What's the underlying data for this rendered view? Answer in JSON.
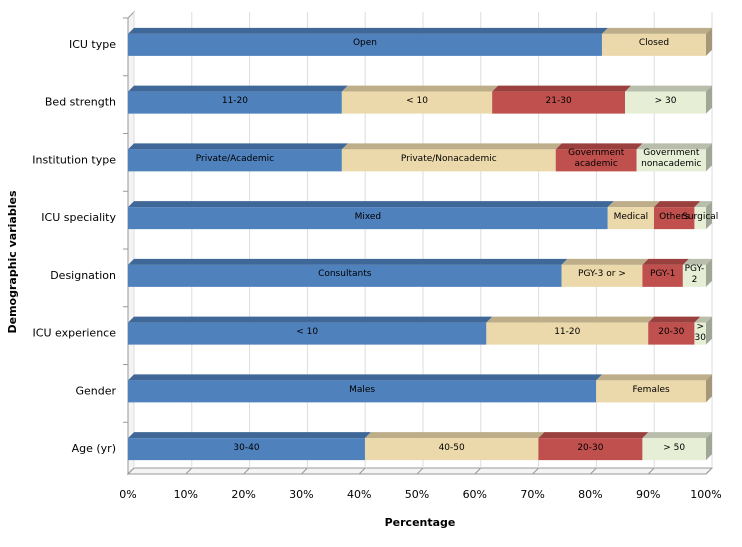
{
  "chart_data": {
    "type": "stacked-bar-horizontal",
    "x_label": "Percentage",
    "y_label": "Demographic variables",
    "xlim": [
      0,
      100
    ],
    "xticks": [
      {
        "value": 0,
        "label": "0%"
      },
      {
        "value": 10,
        "label": "10%"
      },
      {
        "value": 20,
        "label": "20%"
      },
      {
        "value": 30,
        "label": "30%"
      },
      {
        "value": 40,
        "label": "40%"
      },
      {
        "value": 50,
        "label": "50%"
      },
      {
        "value": 60,
        "label": "60%"
      },
      {
        "value": 70,
        "label": "70%"
      },
      {
        "value": 80,
        "label": "80%"
      },
      {
        "value": 90,
        "label": "90%"
      },
      {
        "value": 100,
        "label": "100%"
      }
    ],
    "grid": true,
    "colors": [
      "#4f81bd",
      "#ecd9ab",
      "#c0504d",
      "#e6eed6"
    ],
    "bars": [
      {
        "category": "ICU type",
        "segments": [
          {
            "label": "Open",
            "value": 82
          },
          {
            "label": "Closed",
            "value": 18
          }
        ]
      },
      {
        "category": "Bed strength",
        "segments": [
          {
            "label": "11-20",
            "value": 37
          },
          {
            "label": "< 10",
            "value": 26
          },
          {
            "label": "21-30",
            "value": 23
          },
          {
            "label": "> 30",
            "value": 14
          }
        ]
      },
      {
        "category": "Institution type",
        "segments": [
          {
            "label": "Private/Academic",
            "value": 37
          },
          {
            "label": "Private/Nonacademic",
            "value": 37
          },
          {
            "label": "Government academic",
            "value": 14
          },
          {
            "label": "Government nonacademic",
            "value": 12
          }
        ]
      },
      {
        "category": "ICU speciality",
        "segments": [
          {
            "label": "Mixed",
            "value": 83
          },
          {
            "label": "Medical",
            "value": 8
          },
          {
            "label": "Others",
            "value": 7
          },
          {
            "label": "Surgical",
            "value": 2
          }
        ]
      },
      {
        "category": "Designation",
        "segments": [
          {
            "label": "Consultants",
            "value": 75
          },
          {
            "label": "PGY-3 or >",
            "value": 14
          },
          {
            "label": "PGY-1",
            "value": 7
          },
          {
            "label": "PGY-2",
            "value": 4
          }
        ]
      },
      {
        "category": "ICU experience",
        "segments": [
          {
            "label": "< 10",
            "value": 62
          },
          {
            "label": "11-20",
            "value": 28
          },
          {
            "label": "20-30",
            "value": 8
          },
          {
            "label": "> 30",
            "value": 2
          }
        ]
      },
      {
        "category": "Gender",
        "segments": [
          {
            "label": "Males",
            "value": 81
          },
          {
            "label": "Females",
            "value": 19
          }
        ]
      },
      {
        "category": "Age (yr)",
        "segments": [
          {
            "label": "30-40",
            "value": 41
          },
          {
            "label": "40-50",
            "value": 30
          },
          {
            "label": "20-30",
            "value": 18
          },
          {
            "label": "> 50",
            "value": 11
          }
        ]
      }
    ]
  }
}
